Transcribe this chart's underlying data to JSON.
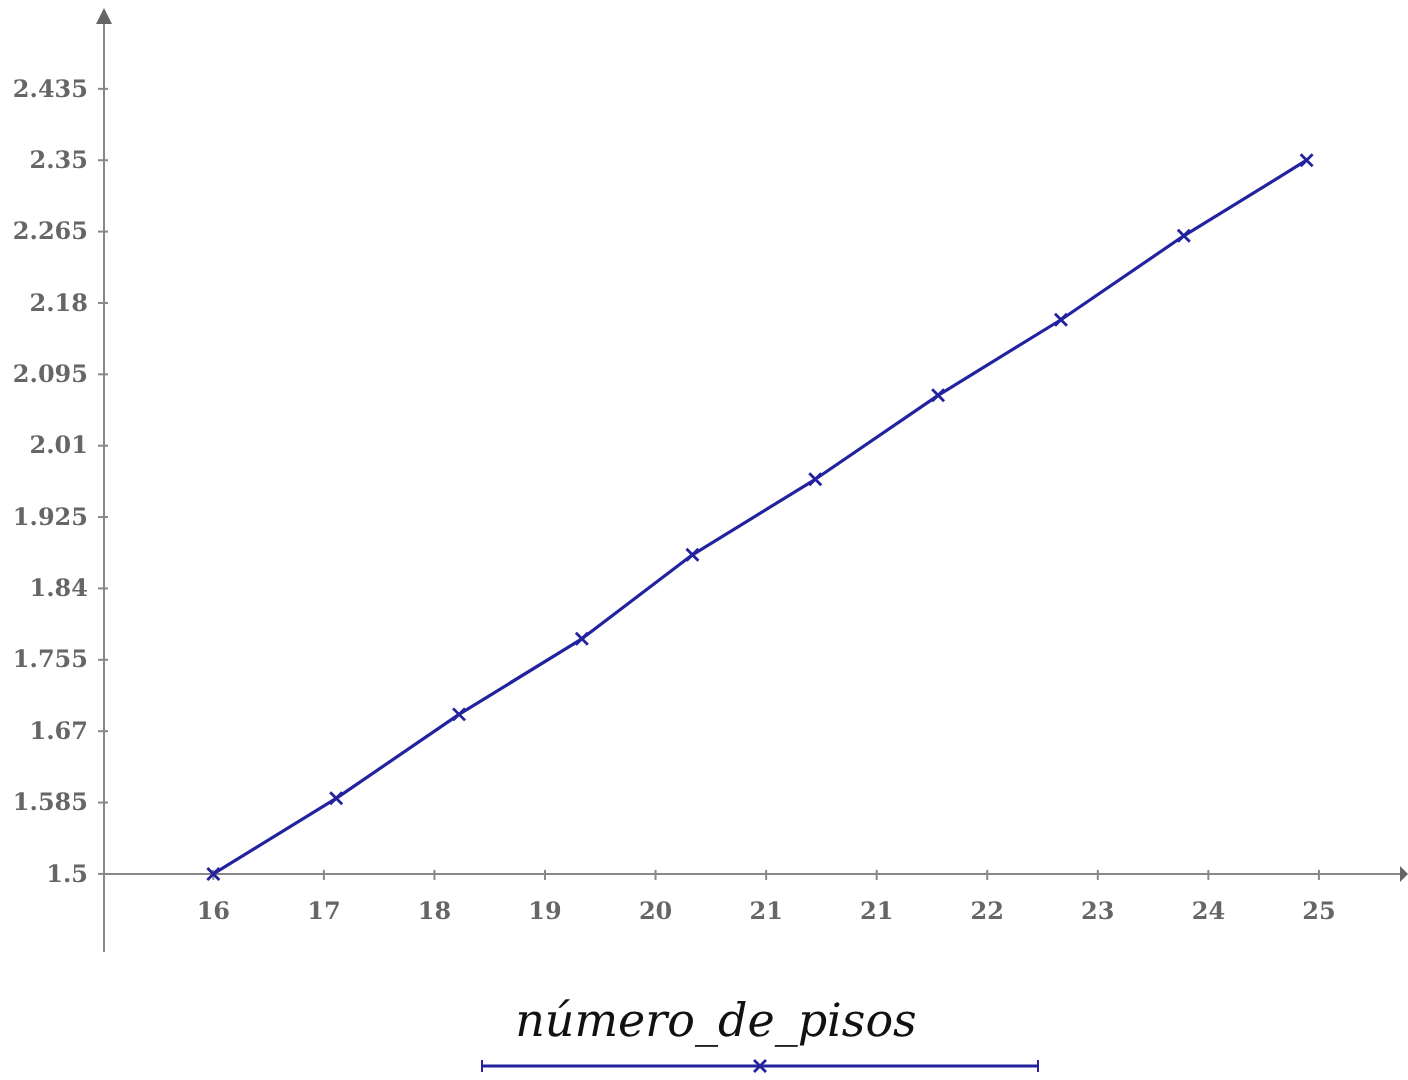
{
  "chart_data": {
    "type": "line",
    "xlabel": "número_de_pisos",
    "x": [
      16,
      17,
      18,
      19,
      19.9,
      20.9,
      21.9,
      22.9,
      23.9,
      24.9
    ],
    "series": [
      {
        "color": "#2323a0",
        "values": [
          1.5,
          1.59,
          1.69,
          1.78,
          1.88,
          1.97,
          2.07,
          2.16,
          2.26,
          2.35
        ]
      }
    ],
    "xlim": [
      15.11,
      25.66
    ],
    "ylim": [
      1.407,
      2.517
    ],
    "xticks": [
      16,
      {
        "value": 16.9,
        "label": "17"
      },
      {
        "value": 17.8,
        "label": "18"
      },
      {
        "value": 18.7,
        "label": "19"
      },
      {
        "value": 19.6,
        "label": "20"
      },
      {
        "value": 20.5,
        "label": "21"
      },
      {
        "value": 21.4,
        "label": "21"
      },
      {
        "value": 22.3,
        "label": "22"
      },
      {
        "value": 23.2,
        "label": "23"
      },
      {
        "value": 24.1,
        "label": "24"
      },
      25
    ],
    "yticks": [
      1.5,
      1.585,
      1.67,
      1.755,
      1.84,
      1.925,
      2.01,
      2.095,
      2.18,
      2.265,
      2.35,
      2.435
    ],
    "marker": "cross",
    "line_style": "solid",
    "grid": false
  }
}
